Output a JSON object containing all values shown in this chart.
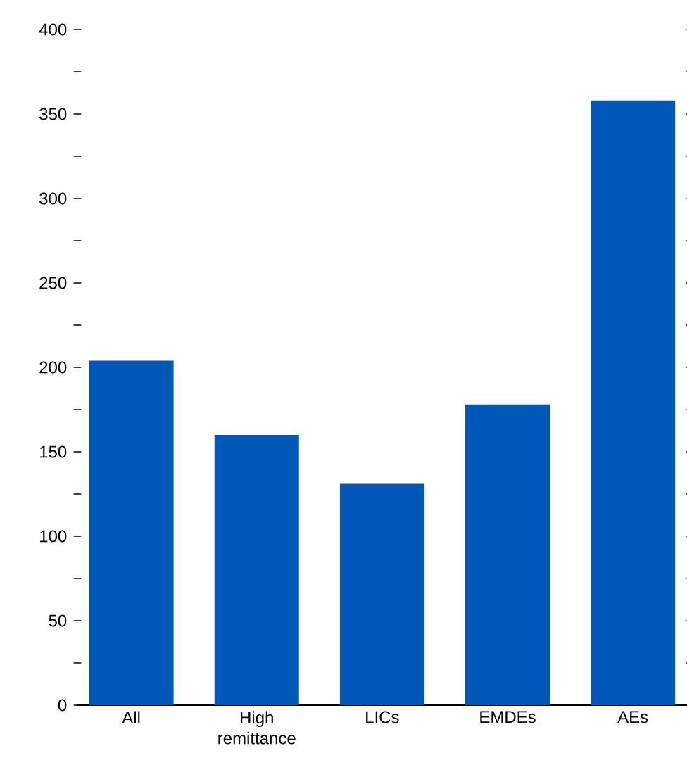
{
  "chart_data": {
    "type": "bar",
    "categories": [
      "All",
      "High remittance",
      "LICs",
      "EMDEs",
      "AEs"
    ],
    "values": [
      204,
      160,
      131,
      178,
      358
    ],
    "color": "#0057b8",
    "ylim": [
      0,
      400
    ],
    "yticks": [
      0,
      {
        "value": 25,
        "label": null
      },
      50,
      {
        "value": 75,
        "label": null
      },
      100,
      {
        "value": 125,
        "label": null
      },
      150,
      {
        "value": 175,
        "label": null
      },
      200,
      {
        "value": 225,
        "label": null
      },
      250,
      {
        "value": 275,
        "label": null
      },
      300,
      {
        "value": 325,
        "label": null
      },
      350,
      {
        "value": 375,
        "label": null
      },
      400
    ],
    "grid": false
  }
}
